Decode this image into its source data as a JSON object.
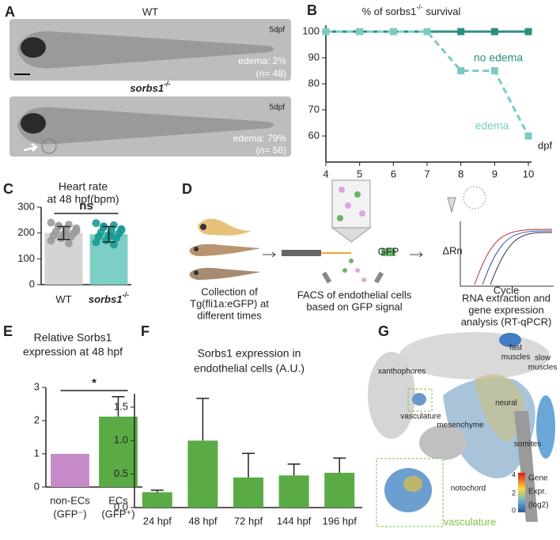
{
  "panel_labels": [
    "A",
    "B",
    "C",
    "D",
    "E",
    "F",
    "G"
  ],
  "panel_a": {
    "top": {
      "genotype": "WT",
      "stage": "5dpf",
      "edema": "edema: 2%",
      "n": "(n= 48)"
    },
    "bottom": {
      "genotype": {
        "text": "sorbs1",
        "sup": "-/-"
      },
      "stage": "5dpf",
      "edema": "edema: 79%",
      "n": "(n= 56)"
    }
  },
  "chart_data": [
    {
      "type": "line",
      "title": {
        "text": "% of sorbs1",
        "sup": "-/-",
        "after": " survival"
      },
      "x": [
        4,
        5,
        6,
        7,
        8,
        9,
        10
      ],
      "xlim": [
        4,
        10
      ],
      "xticks": [
        4,
        5,
        6,
        7,
        8,
        9,
        10
      ],
      "xlabel": "dpf",
      "ylim": [
        50,
        100
      ],
      "yticks": [
        60,
        70,
        80,
        90,
        100
      ],
      "series": [
        {
          "name": "no edema",
          "color": "#2b8f7f",
          "dashed": false,
          "values": [
            100,
            100,
            100,
            100,
            100,
            100,
            100
          ]
        },
        {
          "name": "edema",
          "color": "#7ccbc3",
          "dashed": true,
          "values": [
            100,
            100,
            100,
            100,
            85,
            85,
            60
          ]
        }
      ]
    },
    {
      "type": "bar",
      "title": [
        "Heart rate",
        "at 48 hpf(bpm)"
      ],
      "categories": [
        {
          "text": "WT"
        },
        {
          "text": "sorbs1",
          "sup": "-/-"
        }
      ],
      "values": [
        200,
        195
      ],
      "errors": [
        25,
        30
      ],
      "colors": [
        "#d4d4d4",
        "#7dcfc5"
      ],
      "point_colors": [
        "#9a9a9a",
        "#179a94"
      ],
      "points": [
        [
          240,
          232,
          225,
          218,
          212,
          206,
          200,
          196,
          190,
          186,
          180,
          170,
          160,
          228,
          208,
          194
        ],
        [
          238,
          230,
          222,
          215,
          208,
          203,
          198,
          192,
          186,
          180,
          172,
          164,
          155,
          226,
          210,
          188
        ]
      ],
      "ylim": [
        0,
        300
      ],
      "yticks": [
        0,
        100,
        200,
        300
      ],
      "annotation": "ns"
    },
    {
      "type": "bar",
      "title": [
        "Relative Sorbs1",
        "expression at 48 hpf"
      ],
      "categories": [
        [
          "non-ECs",
          "(GFP⁻)"
        ],
        [
          "ECs",
          "(GFP⁺)"
        ]
      ],
      "values": [
        1,
        2.12
      ],
      "errors": [
        0,
        0.6
      ],
      "colors": [
        "#c68ac8",
        "#5aab45"
      ],
      "ylim": [
        0,
        3
      ],
      "yticks": [
        0,
        1,
        2,
        3
      ],
      "annotation": "*"
    },
    {
      "type": "bar",
      "title": [
        "Sorbs1 expression in",
        "endothelial cells (A.U.)"
      ],
      "categories": [
        "24 hpf",
        "48 hpf",
        "72 hpf",
        "144 hpf",
        "196 hpf"
      ],
      "values": [
        0.23,
        1.0,
        0.45,
        0.48,
        0.52
      ],
      "errors": [
        0.03,
        0.63,
        0.36,
        0.17,
        0.22
      ],
      "colors": [
        "#5aab45",
        "#5aab45",
        "#5aab45",
        "#5aab45",
        "#5aab45"
      ],
      "ylim": [
        0,
        1.7
      ],
      "yticks": [
        {
          "value": 0,
          "label": "0.0"
        },
        0.5,
        {
          "value": 1,
          "label": "1.0"
        },
        1.5
      ]
    }
  ],
  "panel_d": {
    "collection": [
      "Collection of",
      "Tg(fli1a:eGFP) at",
      "different times"
    ],
    "facs": [
      "FACS of endothelial cells",
      "based on GFP signal"
    ],
    "rna": [
      "RNA extraction and",
      "gene expression",
      "analysis (RT-qPCR)"
    ],
    "gfp": "GFP",
    "y_axis": "ΔRn",
    "x_axis": "Cycle"
  },
  "panel_g": {
    "fast": [
      "fast",
      "muscles"
    ],
    "slow": [
      "slow",
      "muscles"
    ],
    "xanthophores": "xanthophores",
    "vasculature": "vasculature",
    "neural": "neural",
    "mesenchyme": "mesenchyme",
    "somites": "somites",
    "notochord": "notochord",
    "inset": "vasculature",
    "legend": [
      "Gene",
      "Expr.",
      "(log2)"
    ],
    "colorbar": [
      "4",
      "2",
      "0"
    ]
  }
}
